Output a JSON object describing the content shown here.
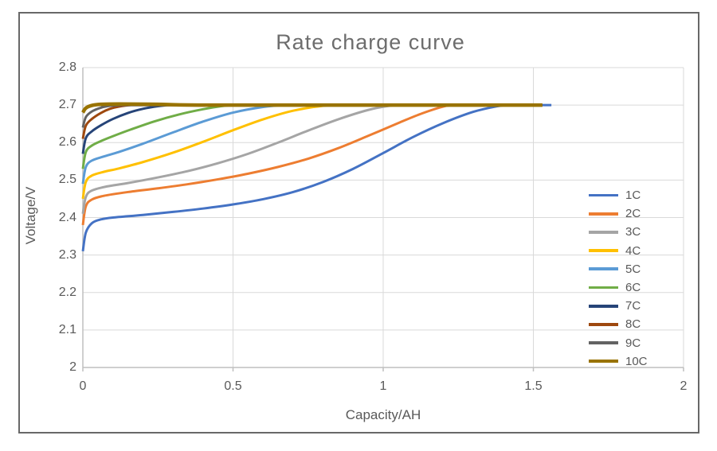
{
  "window": {
    "background": "#ffffff",
    "frame_border_color": "#686868"
  },
  "text_colors": {
    "title": "#6d6d6d",
    "axis_labels": "#595959",
    "tick_labels": "#595959"
  },
  "grid_colors": {
    "gridline": "#d9d9d9",
    "axis_line": "#bfbfbf"
  },
  "chart_data": {
    "type": "line",
    "title": "Rate charge curve",
    "xlabel": "Capacity/AH",
    "ylabel": "Voltage/V",
    "xlim": [
      0,
      2
    ],
    "ylim": [
      2,
      2.8
    ],
    "grid": true,
    "legend_position": "right-inside",
    "x_ticks": [
      0,
      0.5,
      1,
      1.5,
      2
    ],
    "x_tick_labels": [
      "0",
      "0.5",
      "1",
      "1.5",
      "2"
    ],
    "y_ticks": [
      2,
      2.1,
      2.2,
      2.3,
      2.4,
      2.5,
      2.6,
      2.7,
      2.8
    ],
    "y_tick_labels": [
      "2",
      "2.1",
      "2.2",
      "2.3",
      "2.4",
      "2.5",
      "2.6",
      "2.7",
      "2.8"
    ],
    "series": [
      {
        "name": "1C",
        "color": "#4472C4",
        "width": 3,
        "points": [
          [
            0,
            2.31
          ],
          [
            0.01,
            2.36
          ],
          [
            0.03,
            2.385
          ],
          [
            0.06,
            2.395
          ],
          [
            0.1,
            2.4
          ],
          [
            0.2,
            2.407
          ],
          [
            0.3,
            2.415
          ],
          [
            0.4,
            2.424
          ],
          [
            0.5,
            2.435
          ],
          [
            0.6,
            2.449
          ],
          [
            0.7,
            2.468
          ],
          [
            0.8,
            2.495
          ],
          [
            0.9,
            2.53
          ],
          [
            1.0,
            2.572
          ],
          [
            1.1,
            2.615
          ],
          [
            1.2,
            2.652
          ],
          [
            1.3,
            2.682
          ],
          [
            1.38,
            2.697
          ],
          [
            1.42,
            2.7
          ],
          [
            1.47,
            2.7
          ],
          [
            1.56,
            2.7
          ]
        ]
      },
      {
        "name": "2C",
        "color": "#ED7D31",
        "width": 3,
        "points": [
          [
            0,
            2.38
          ],
          [
            0.01,
            2.43
          ],
          [
            0.03,
            2.448
          ],
          [
            0.07,
            2.458
          ],
          [
            0.15,
            2.468
          ],
          [
            0.25,
            2.478
          ],
          [
            0.35,
            2.489
          ],
          [
            0.45,
            2.502
          ],
          [
            0.55,
            2.517
          ],
          [
            0.65,
            2.535
          ],
          [
            0.75,
            2.557
          ],
          [
            0.85,
            2.585
          ],
          [
            0.95,
            2.618
          ],
          [
            1.05,
            2.652
          ],
          [
            1.13,
            2.678
          ],
          [
            1.21,
            2.698
          ],
          [
            1.26,
            2.7
          ],
          [
            1.32,
            2.7
          ],
          [
            1.53,
            2.7
          ]
        ]
      },
      {
        "name": "3C",
        "color": "#A5A5A5",
        "width": 3,
        "points": [
          [
            0,
            2.41
          ],
          [
            0.01,
            2.455
          ],
          [
            0.03,
            2.472
          ],
          [
            0.08,
            2.483
          ],
          [
            0.15,
            2.492
          ],
          [
            0.25,
            2.507
          ],
          [
            0.35,
            2.524
          ],
          [
            0.45,
            2.545
          ],
          [
            0.55,
            2.57
          ],
          [
            0.65,
            2.6
          ],
          [
            0.75,
            2.632
          ],
          [
            0.85,
            2.662
          ],
          [
            0.95,
            2.687
          ],
          [
            1.02,
            2.698
          ],
          [
            1.06,
            2.7
          ],
          [
            1.12,
            2.7
          ],
          [
            1.53,
            2.7
          ]
        ]
      },
      {
        "name": "4C",
        "color": "#FFC000",
        "width": 3,
        "points": [
          [
            0,
            2.45
          ],
          [
            0.01,
            2.495
          ],
          [
            0.03,
            2.512
          ],
          [
            0.07,
            2.522
          ],
          [
            0.12,
            2.531
          ],
          [
            0.2,
            2.548
          ],
          [
            0.3,
            2.573
          ],
          [
            0.4,
            2.602
          ],
          [
            0.5,
            2.633
          ],
          [
            0.6,
            2.662
          ],
          [
            0.7,
            2.685
          ],
          [
            0.8,
            2.698
          ],
          [
            0.86,
            2.7
          ],
          [
            0.92,
            2.7
          ],
          [
            1.53,
            2.7
          ]
        ]
      },
      {
        "name": "5C",
        "color": "#5B9BD5",
        "width": 3,
        "points": [
          [
            0,
            2.49
          ],
          [
            0.01,
            2.535
          ],
          [
            0.03,
            2.552
          ],
          [
            0.07,
            2.563
          ],
          [
            0.12,
            2.575
          ],
          [
            0.2,
            2.597
          ],
          [
            0.3,
            2.627
          ],
          [
            0.4,
            2.656
          ],
          [
            0.5,
            2.68
          ],
          [
            0.6,
            2.695
          ],
          [
            0.67,
            2.7
          ],
          [
            0.73,
            2.7
          ],
          [
            1.53,
            2.7
          ]
        ]
      },
      {
        "name": "6C",
        "color": "#70AD47",
        "width": 3,
        "points": [
          [
            0,
            2.53
          ],
          [
            0.01,
            2.575
          ],
          [
            0.03,
            2.592
          ],
          [
            0.06,
            2.604
          ],
          [
            0.1,
            2.617
          ],
          [
            0.16,
            2.635
          ],
          [
            0.24,
            2.657
          ],
          [
            0.32,
            2.675
          ],
          [
            0.4,
            2.689
          ],
          [
            0.46,
            2.697
          ],
          [
            0.5,
            2.7
          ],
          [
            0.56,
            2.7
          ],
          [
            1.53,
            2.7
          ]
        ]
      },
      {
        "name": "7C",
        "color": "#264478",
        "width": 3,
        "points": [
          [
            0,
            2.57
          ],
          [
            0.01,
            2.612
          ],
          [
            0.03,
            2.63
          ],
          [
            0.06,
            2.646
          ],
          [
            0.1,
            2.663
          ],
          [
            0.15,
            2.679
          ],
          [
            0.2,
            2.69
          ],
          [
            0.25,
            2.697
          ],
          [
            0.29,
            2.7
          ],
          [
            0.35,
            2.7
          ],
          [
            1.53,
            2.7
          ]
        ]
      },
      {
        "name": "8C",
        "color": "#9E480E",
        "width": 3,
        "points": [
          [
            0,
            2.61
          ],
          [
            0.01,
            2.645
          ],
          [
            0.03,
            2.663
          ],
          [
            0.06,
            2.679
          ],
          [
            0.09,
            2.69
          ],
          [
            0.12,
            2.696
          ],
          [
            0.16,
            2.7
          ],
          [
            0.22,
            2.7
          ],
          [
            1.53,
            2.7
          ]
        ]
      },
      {
        "name": "9C",
        "color": "#636363",
        "width": 3,
        "points": [
          [
            0,
            2.64
          ],
          [
            0.01,
            2.668
          ],
          [
            0.03,
            2.683
          ],
          [
            0.06,
            2.693
          ],
          [
            0.09,
            2.698
          ],
          [
            0.12,
            2.7
          ],
          [
            0.18,
            2.7
          ],
          [
            1.53,
            2.7
          ]
        ]
      },
      {
        "name": "10C",
        "color": "#997300",
        "width": 4.5,
        "points": [
          [
            0,
            2.68
          ],
          [
            0.01,
            2.692
          ],
          [
            0.03,
            2.699
          ],
          [
            0.06,
            2.702
          ],
          [
            0.12,
            2.703
          ],
          [
            0.25,
            2.702
          ],
          [
            0.4,
            2.7
          ],
          [
            0.9,
            2.7
          ],
          [
            1.53,
            2.7
          ]
        ]
      }
    ]
  }
}
